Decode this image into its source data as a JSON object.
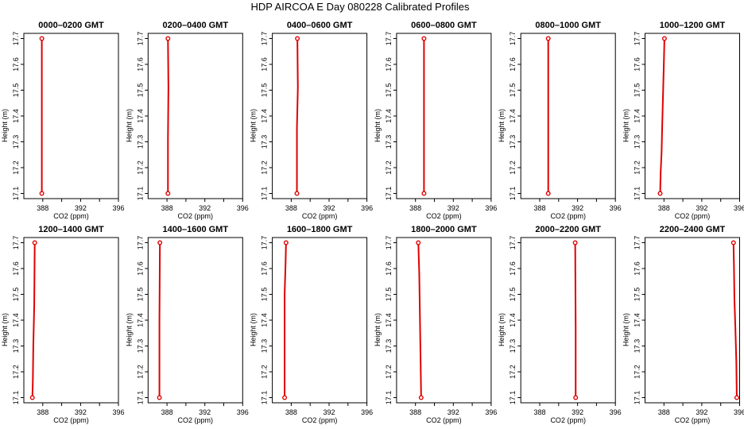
{
  "figure": {
    "title": "HDP  AIRCOA E  Day 080228  Calibrated Profiles"
  },
  "colors": {
    "profile": "#e00000",
    "axes": "#000000",
    "background": "#ffffff"
  },
  "chart_data": [
    {
      "type": "line",
      "title": "0000–0200 GMT",
      "xlabel": "CO2 (ppm)",
      "ylabel": "Height (m)",
      "xlim": [
        386,
        396
      ],
      "ylim": [
        17.08,
        17.72
      ],
      "xticks": [
        "388",
        "392",
        "396"
      ],
      "yticks": [
        "17.1",
        "17.2",
        "17.3",
        "17.4",
        "17.5",
        "17.6",
        "17.7"
      ],
      "series": [
        {
          "x": [
            387.9,
            387.9
          ],
          "y": [
            17.1,
            17.7
          ]
        }
      ]
    },
    {
      "type": "line",
      "title": "0200–0400 GMT",
      "xlabel": "CO2 (ppm)",
      "ylabel": "Height (m)",
      "xlim": [
        386,
        396
      ],
      "ylim": [
        17.08,
        17.72
      ],
      "xticks": [
        "388",
        "392",
        "396"
      ],
      "yticks": [
        "17.1",
        "17.2",
        "17.3",
        "17.4",
        "17.5",
        "17.6",
        "17.7"
      ],
      "series": [
        {
          "x": [
            388.1,
            388.1,
            388.15,
            388.1
          ],
          "y": [
            17.1,
            17.31,
            17.51,
            17.7
          ]
        }
      ]
    },
    {
      "type": "line",
      "title": "0400–0600 GMT",
      "xlabel": "CO2 (ppm)",
      "ylabel": "Height (m)",
      "xlim": [
        386,
        396
      ],
      "ylim": [
        17.08,
        17.72
      ],
      "xticks": [
        "388",
        "392",
        "396"
      ],
      "yticks": [
        "17.1",
        "17.2",
        "17.3",
        "17.4",
        "17.5",
        "17.6",
        "17.7"
      ],
      "series": [
        {
          "x": [
            388.6,
            388.6,
            388.7,
            388.65
          ],
          "y": [
            17.1,
            17.35,
            17.51,
            17.7
          ]
        }
      ]
    },
    {
      "type": "line",
      "title": "0600–0800 GMT",
      "xlabel": "CO2 (ppm)",
      "ylabel": "Height (m)",
      "xlim": [
        386,
        396
      ],
      "ylim": [
        17.08,
        17.72
      ],
      "xticks": [
        "388",
        "392",
        "396"
      ],
      "yticks": [
        "17.1",
        "17.2",
        "17.3",
        "17.4",
        "17.5",
        "17.6",
        "17.7"
      ],
      "series": [
        {
          "x": [
            388.9,
            388.9
          ],
          "y": [
            17.1,
            17.7
          ]
        }
      ]
    },
    {
      "type": "line",
      "title": "0800–1000 GMT",
      "xlabel": "CO2 (ppm)",
      "ylabel": "Height (m)",
      "xlim": [
        386,
        396
      ],
      "ylim": [
        17.08,
        17.72
      ],
      "xticks": [
        "388",
        "392",
        "396"
      ],
      "yticks": [
        "17.1",
        "17.2",
        "17.3",
        "17.4",
        "17.5",
        "17.6",
        "17.7"
      ],
      "series": [
        {
          "x": [
            388.9,
            388.9
          ],
          "y": [
            17.1,
            17.7
          ]
        }
      ]
    },
    {
      "type": "line",
      "title": "1000–1200 GMT",
      "xlabel": "CO2 (ppm)",
      "ylabel": "Height (m)",
      "xlim": [
        386,
        396
      ],
      "ylim": [
        17.08,
        17.72
      ],
      "xticks": [
        "388",
        "392",
        "396"
      ],
      "yticks": [
        "17.1",
        "17.2",
        "17.3",
        "17.4",
        "17.5",
        "17.6",
        "17.7"
      ],
      "series": [
        {
          "x": [
            387.6,
            387.65,
            387.75,
            387.8,
            387.9,
            388.0,
            388.05
          ],
          "y": [
            17.1,
            17.18,
            17.26,
            17.34,
            17.48,
            17.62,
            17.7
          ]
        }
      ]
    },
    {
      "type": "line",
      "title": "1200–1400 GMT",
      "xlabel": "CO2 (ppm)",
      "ylabel": "Height (m)",
      "xlim": [
        386,
        396
      ],
      "ylim": [
        17.08,
        17.72
      ],
      "xticks": [
        "388",
        "392",
        "396"
      ],
      "yticks": [
        "17.1",
        "17.2",
        "17.3",
        "17.4",
        "17.5",
        "17.6",
        "17.7"
      ],
      "series": [
        {
          "x": [
            386.9,
            386.95,
            387.0,
            387.1,
            387.15
          ],
          "y": [
            17.1,
            17.16,
            17.3,
            17.46,
            17.7
          ]
        }
      ]
    },
    {
      "type": "line",
      "title": "1400–1600 GMT",
      "xlabel": "CO2 (ppm)",
      "ylabel": "Height (m)",
      "xlim": [
        386,
        396
      ],
      "ylim": [
        17.08,
        17.72
      ],
      "xticks": [
        "388",
        "392",
        "396"
      ],
      "yticks": [
        "17.1",
        "17.2",
        "17.3",
        "17.4",
        "17.5",
        "17.6",
        "17.7"
      ],
      "series": [
        {
          "x": [
            387.2,
            387.2,
            387.25
          ],
          "y": [
            17.1,
            17.4,
            17.7
          ]
        }
      ]
    },
    {
      "type": "line",
      "title": "1600–1800 GMT",
      "xlabel": "CO2 (ppm)",
      "ylabel": "Height (m)",
      "xlim": [
        386,
        396
      ],
      "ylim": [
        17.08,
        17.72
      ],
      "xticks": [
        "388",
        "392",
        "396"
      ],
      "yticks": [
        "17.1",
        "17.2",
        "17.3",
        "17.4",
        "17.5",
        "17.6",
        "17.7"
      ],
      "series": [
        {
          "x": [
            387.3,
            387.3,
            387.4,
            387.45
          ],
          "y": [
            17.1,
            17.5,
            17.62,
            17.7
          ]
        }
      ]
    },
    {
      "type": "line",
      "title": "1800–2000 GMT",
      "xlabel": "CO2 (ppm)",
      "ylabel": "Height (m)",
      "xlim": [
        386,
        396
      ],
      "ylim": [
        17.08,
        17.72
      ],
      "xticks": [
        "388",
        "392",
        "396"
      ],
      "yticks": [
        "17.1",
        "17.2",
        "17.3",
        "17.4",
        "17.5",
        "17.6",
        "17.7"
      ],
      "series": [
        {
          "x": [
            388.6,
            388.55,
            388.5,
            388.4,
            388.3
          ],
          "y": [
            17.1,
            17.22,
            17.34,
            17.58,
            17.7
          ]
        }
      ]
    },
    {
      "type": "line",
      "title": "2000–2200 GMT",
      "xlabel": "CO2 (ppm)",
      "ylabel": "Height (m)",
      "xlim": [
        386,
        396
      ],
      "ylim": [
        17.08,
        17.72
      ],
      "xticks": [
        "388",
        "392",
        "396"
      ],
      "yticks": [
        "17.1",
        "17.2",
        "17.3",
        "17.4",
        "17.5",
        "17.6",
        "17.7"
      ],
      "series": [
        {
          "x": [
            391.8,
            391.8,
            391.75
          ],
          "y": [
            17.1,
            17.37,
            17.7
          ]
        }
      ]
    },
    {
      "type": "line",
      "title": "2200–2400 GMT",
      "xlabel": "CO2 (ppm)",
      "ylabel": "Height (m)",
      "xlim": [
        386,
        396
      ],
      "ylim": [
        17.08,
        17.72
      ],
      "xticks": [
        "388",
        "392",
        "396"
      ],
      "yticks": [
        "17.1",
        "17.2",
        "17.3",
        "17.4",
        "17.5",
        "17.6",
        "17.7"
      ],
      "series": [
        {
          "x": [
            395.7,
            395.65,
            395.55,
            395.45,
            395.4,
            395.35
          ],
          "y": [
            17.1,
            17.24,
            17.37,
            17.48,
            17.61,
            17.7
          ]
        }
      ]
    }
  ]
}
